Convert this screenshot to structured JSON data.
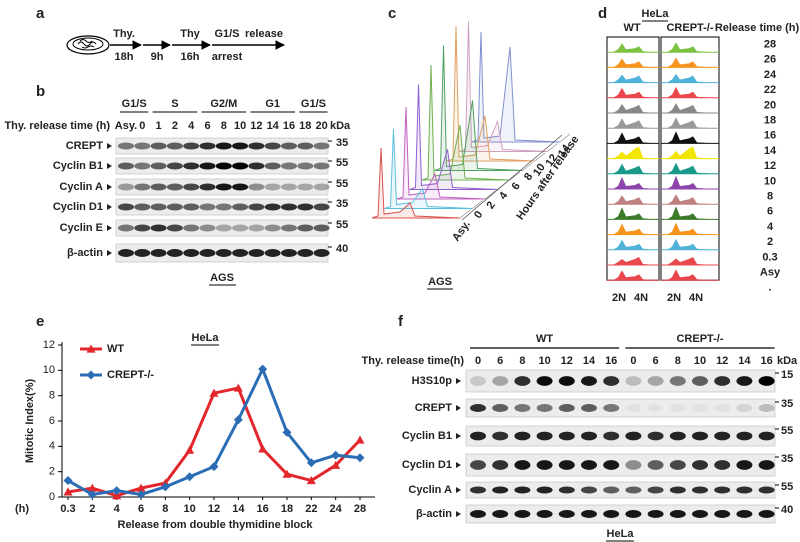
{
  "panel_a": {
    "label": "a",
    "step1_drug": "Thy.",
    "step1_time": "18h",
    "step2_time": "9h",
    "step3_drug": "Thy",
    "step3_time": "16h",
    "arrest_line1": "G1/S",
    "arrest_line2": "arrest",
    "release": "release"
  },
  "panel_b": {
    "label": "b",
    "time_label": "Thy. release time (h)",
    "phases": [
      "G1/S",
      "S",
      "G2/M",
      "G1",
      "G1/S"
    ],
    "lanes": [
      "Asy.",
      "0",
      "1",
      "2",
      "4",
      "6",
      "8",
      "10",
      "12",
      "14",
      "16",
      "18",
      "20"
    ],
    "kda_header": "kDa",
    "rows": [
      {
        "name": "CREPT",
        "kda": 35
      },
      {
        "name": "Cyclin B1",
        "kda": 55
      },
      {
        "name": "Cyclin A",
        "kda": 55
      },
      {
        "name": "Cyclin D1",
        "kda": 35
      },
      {
        "name": "Cyclin E",
        "kda": 55
      },
      {
        "name": "β-actin",
        "kda": 40
      }
    ],
    "cell_line": "AGS"
  },
  "panel_c": {
    "label": "c",
    "samples": [
      "Asy.",
      "0",
      "2",
      "4",
      "6",
      "8",
      "10",
      "12",
      "14"
    ],
    "axis_label": "Hours after release",
    "cell_line": "AGS"
  },
  "panel_d": {
    "label": "d",
    "cell_line": "HeLa",
    "columns": [
      "WT",
      "CREPT-/-"
    ],
    "time_header": "Release time (h)",
    "times": [
      "28",
      "26",
      "24",
      "22",
      "20",
      "18",
      "16",
      "14",
      "12",
      "10",
      "8",
      "6",
      "4",
      "2",
      "0.3",
      "Asy",
      "."
    ],
    "dna_labels": [
      "2N",
      "4N"
    ]
  },
  "chart_data": {
    "type": "line",
    "panel_label": "e",
    "title": "HeLa",
    "x_label": "Release from double thymidine block",
    "x_unit": "(h)",
    "y_label": "Mitotic Index(%)",
    "categories": [
      "0.3",
      "2",
      "4",
      "6",
      "8",
      "10",
      "12",
      "14",
      "16",
      "18",
      "22",
      "24",
      "28"
    ],
    "series": [
      {
        "name": "WT",
        "color": "#e3262b",
        "marker": "triangle",
        "values": [
          0.4,
          0.7,
          0.1,
          0.7,
          1.1,
          3.7,
          8.2,
          8.6,
          3.8,
          1.8,
          1.3,
          2.5,
          4.5
        ]
      },
      {
        "name": "CREPT-/-",
        "color": "#2a6db5",
        "marker": "diamond",
        "values": [
          1.3,
          0.2,
          0.5,
          0.2,
          0.8,
          1.6,
          2.4,
          6.1,
          10.1,
          5.1,
          2.7,
          3.3,
          3.1
        ]
      }
    ],
    "ylim": [
      0,
      12
    ],
    "yticks": [
      0,
      2,
      4,
      6,
      8,
      10,
      12
    ]
  },
  "panel_f": {
    "label": "f",
    "groups": [
      {
        "name": "WT",
        "lanes": [
          "0",
          "6",
          "8",
          "10",
          "12",
          "14",
          "16"
        ]
      },
      {
        "name": "CREPT-/-",
        "lanes": [
          "0",
          "6",
          "8",
          "10",
          "12",
          "14",
          "16"
        ]
      }
    ],
    "time_label": "Thy. release time(h)",
    "kda_header": "kDa",
    "rows": [
      {
        "name": "H3S10p",
        "kda": 15
      },
      {
        "name": "CREPT",
        "kda": 35
      },
      {
        "name": "Cyclin B1",
        "kda": 55
      },
      {
        "name": "Cyclin D1",
        "kda": 35
      },
      {
        "name": "Cyclin A",
        "kda": 55
      },
      {
        "name": "β-actin",
        "kda": 40
      }
    ],
    "cell_line": "HeLa"
  }
}
